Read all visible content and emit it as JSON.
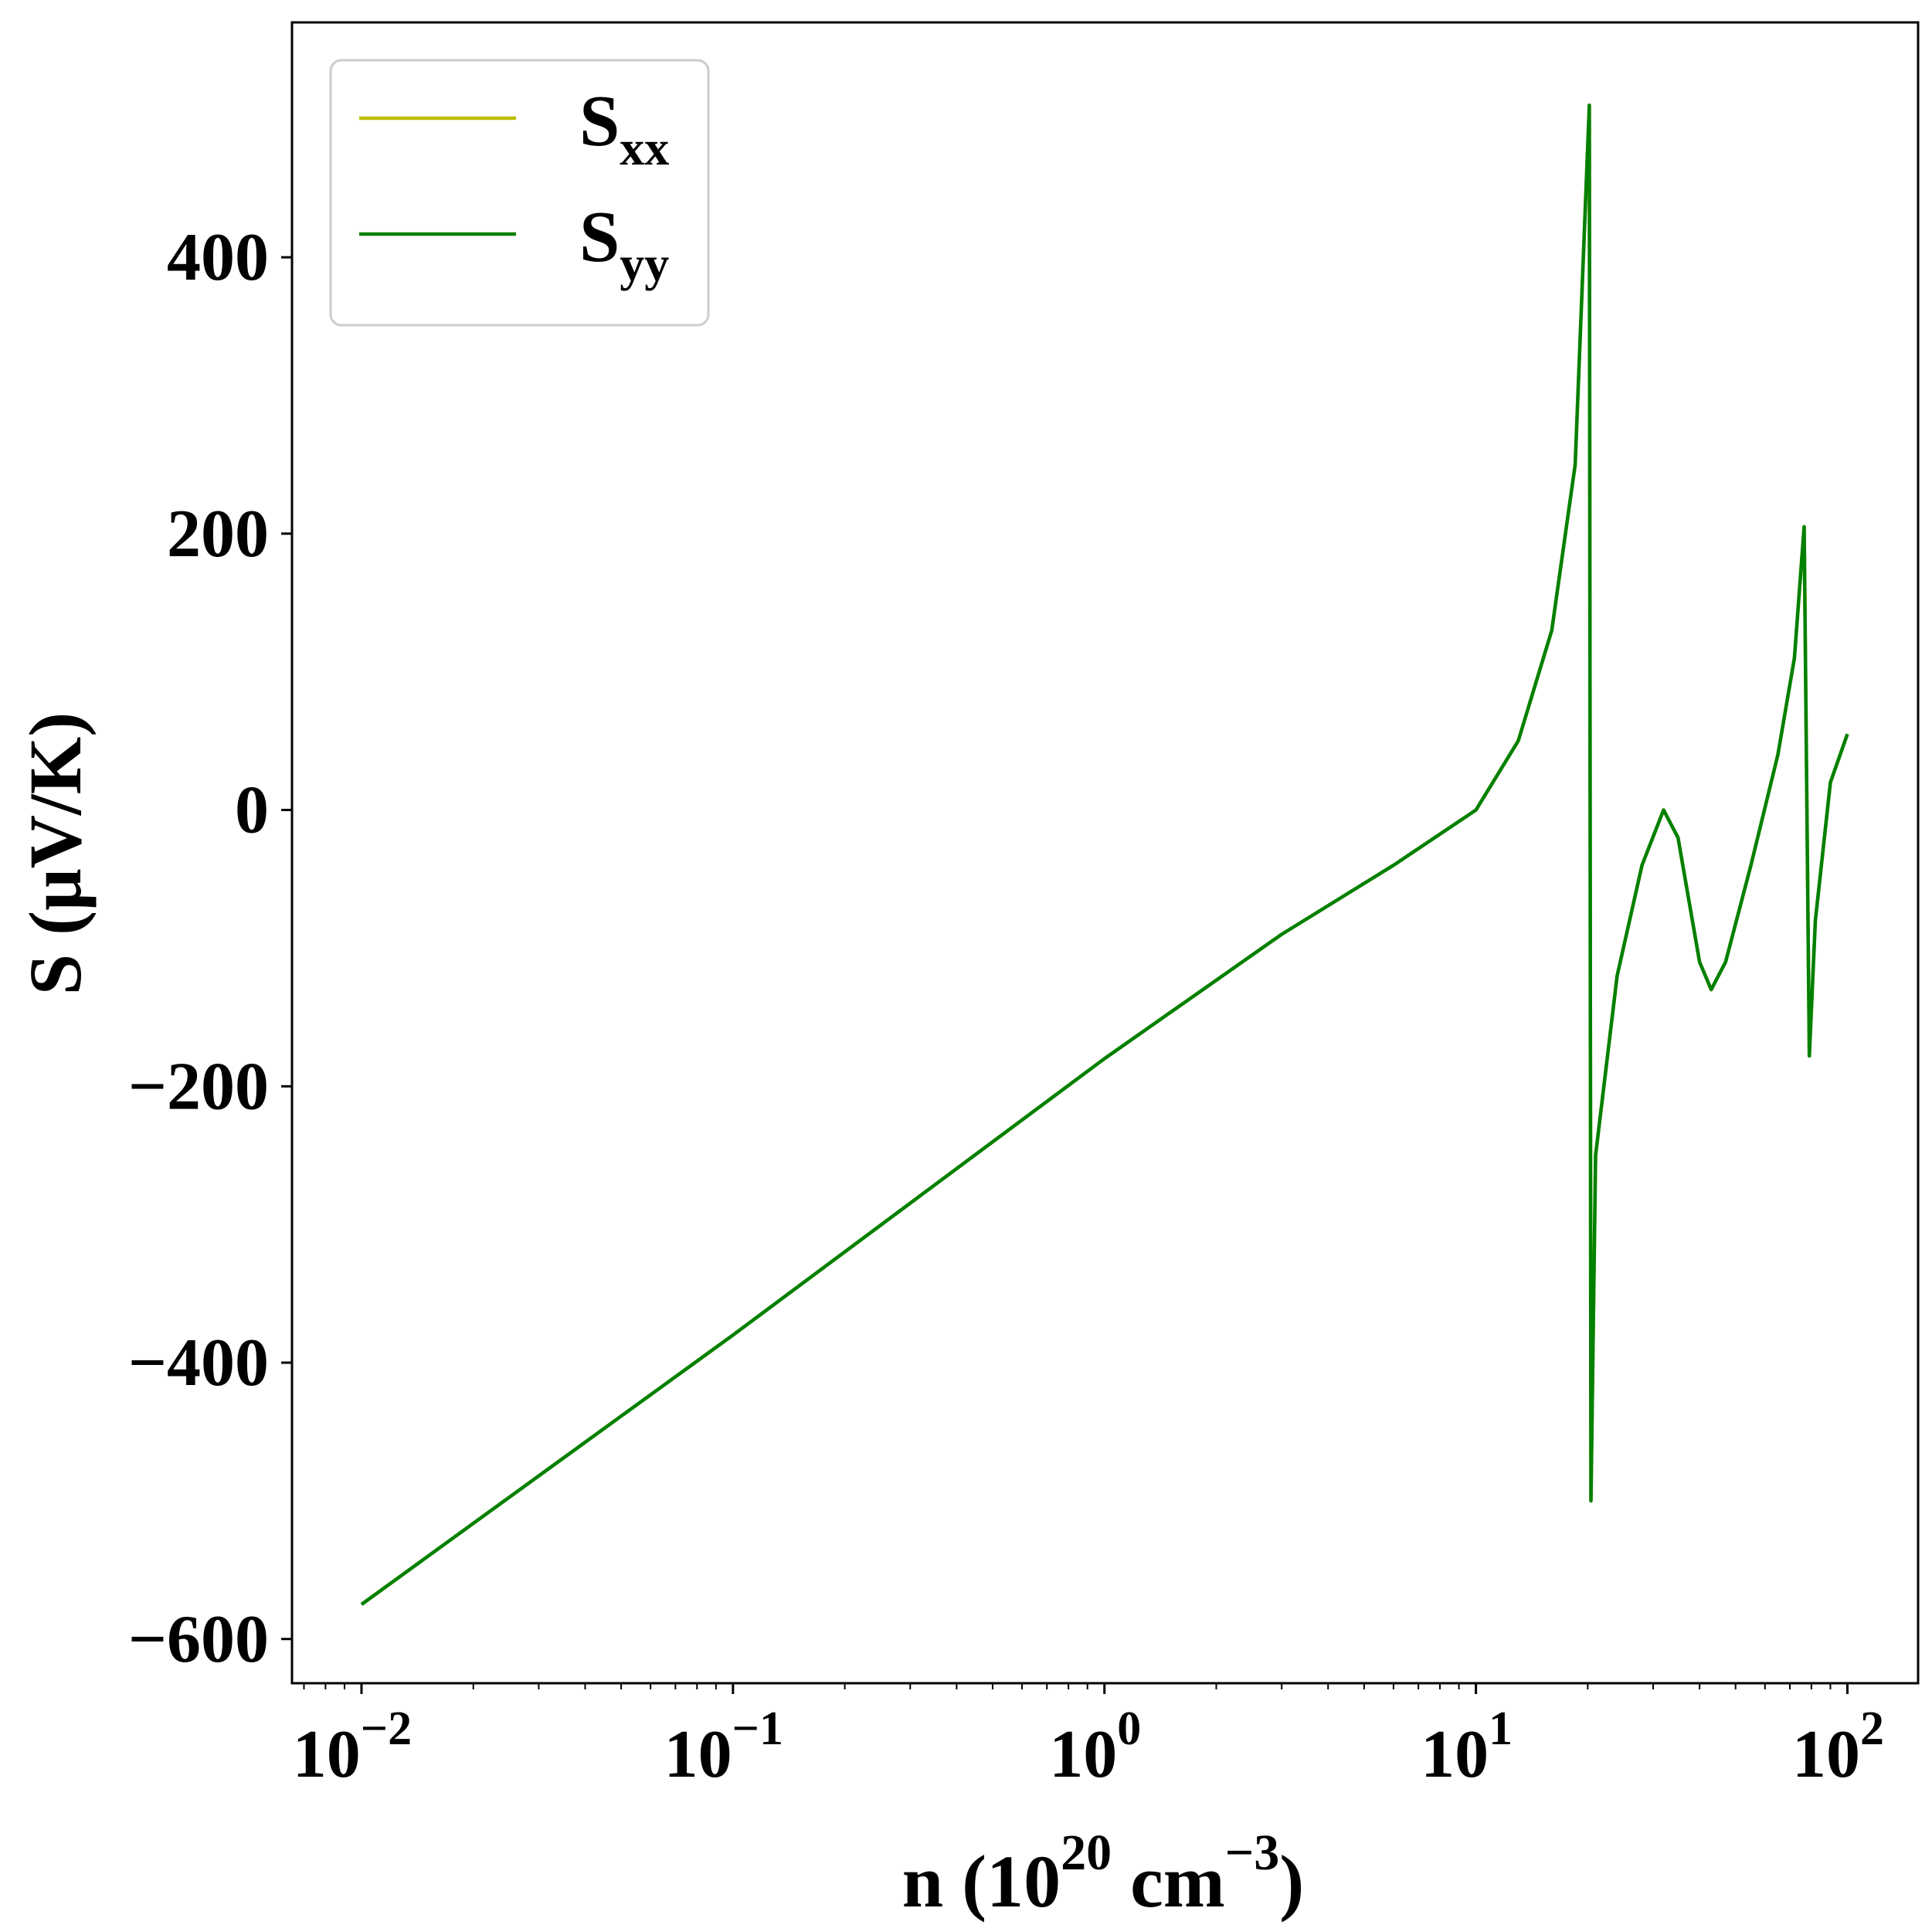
{
  "chart_data": {
    "type": "line",
    "xscale": "log",
    "xlim": [
      0.0065,
      155
    ],
    "ylim": [
      -632,
      570
    ],
    "xlabel": {
      "base": "n (10",
      "exp": "20",
      "unit": " cm",
      "unit_exp": "−3",
      "close": ")"
    },
    "ylabel": "S (μV/K)",
    "x_ticks": [
      {
        "value": 0.01,
        "base": "10",
        "exp": "−2"
      },
      {
        "value": 0.1,
        "base": "10",
        "exp": "−1"
      },
      {
        "value": 1,
        "base": "10",
        "exp": "0"
      },
      {
        "value": 10,
        "base": "10",
        "exp": "1"
      },
      {
        "value": 100,
        "base": "10",
        "exp": "2"
      }
    ],
    "y_ticks": [
      {
        "value": -600,
        "label": "−600"
      },
      {
        "value": -400,
        "label": "−400"
      },
      {
        "value": -200,
        "label": "−200"
      },
      {
        "value": 0,
        "label": "0"
      },
      {
        "value": 200,
        "label": "200"
      },
      {
        "value": 400,
        "label": "400"
      }
    ],
    "grid": false,
    "legend_position": "top-left",
    "series": [
      {
        "name": "S",
        "sub": "xx",
        "color": "#bfbf00",
        "points": [
          [
            0.01,
            -575
          ],
          [
            0.1,
            -380
          ],
          [
            1,
            -180
          ],
          [
            3,
            -90
          ],
          [
            6,
            -40
          ],
          [
            10,
            0
          ],
          [
            13,
            50
          ],
          [
            16,
            130
          ],
          [
            18.5,
            250
          ],
          [
            20.2,
            510
          ],
          [
            20.4,
            -500
          ],
          [
            21,
            -250
          ],
          [
            24,
            -120
          ],
          [
            28,
            -40
          ],
          [
            32,
            0
          ],
          [
            35,
            -20
          ],
          [
            40,
            -110
          ],
          [
            43,
            -130
          ],
          [
            47,
            -110
          ],
          [
            55,
            -40
          ],
          [
            65,
            40
          ],
          [
            72,
            110
          ],
          [
            76.5,
            205
          ],
          [
            79,
            -178
          ],
          [
            82,
            -80
          ],
          [
            90,
            20
          ],
          [
            100,
            55
          ]
        ]
      },
      {
        "name": "S",
        "sub": "yy",
        "color": "#008000",
        "points": [
          [
            0.01,
            -575
          ],
          [
            0.1,
            -380
          ],
          [
            1,
            -180
          ],
          [
            3,
            -90
          ],
          [
            6,
            -40
          ],
          [
            10,
            0
          ],
          [
            13,
            50
          ],
          [
            16,
            130
          ],
          [
            18.5,
            250
          ],
          [
            20.2,
            510
          ],
          [
            20.4,
            -500
          ],
          [
            21,
            -250
          ],
          [
            24,
            -120
          ],
          [
            28,
            -40
          ],
          [
            32,
            0
          ],
          [
            35,
            -20
          ],
          [
            40,
            -110
          ],
          [
            43,
            -130
          ],
          [
            47,
            -110
          ],
          [
            55,
            -40
          ],
          [
            65,
            40
          ],
          [
            72,
            110
          ],
          [
            76.5,
            205
          ],
          [
            79,
            -178
          ],
          [
            82,
            -80
          ],
          [
            90,
            20
          ],
          [
            100,
            55
          ]
        ]
      }
    ]
  }
}
